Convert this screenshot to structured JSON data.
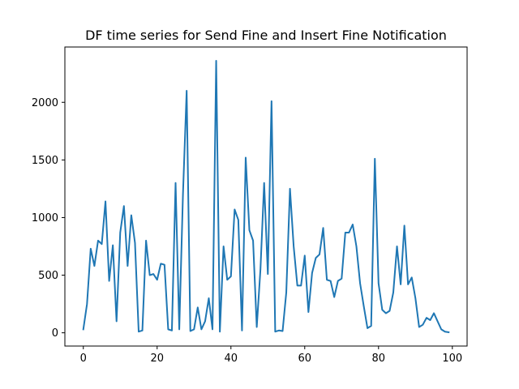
{
  "chart_data": {
    "type": "line",
    "title": "DF time series for Send Fine and Insert Fine Notification",
    "xlabel": "",
    "ylabel": "",
    "xlim": [
      -5,
      104
    ],
    "ylim": [
      -115,
      2480
    ],
    "xticks": [
      0,
      20,
      40,
      60,
      80,
      100
    ],
    "yticks": [
      0,
      500,
      1000,
      1500,
      2000
    ],
    "grid": false,
    "line_color": "#1f77b4",
    "series": [
      {
        "x": [
          0,
          1,
          2,
          3,
          4,
          5,
          6,
          7,
          8,
          9,
          10,
          11,
          12,
          13,
          14,
          15,
          16,
          17,
          18,
          19,
          20,
          21,
          22,
          23,
          24,
          25,
          26,
          27,
          28,
          29,
          30,
          31,
          32,
          33,
          34,
          35,
          36,
          37,
          38,
          39,
          40,
          41,
          42,
          43,
          44,
          45,
          46,
          47,
          48,
          49,
          50,
          51,
          52,
          53,
          54,
          55,
          56,
          57,
          58,
          59,
          60,
          61,
          62,
          63,
          64,
          65,
          66,
          67,
          68,
          69,
          70,
          71,
          72,
          73,
          74,
          75,
          76,
          77,
          78,
          79,
          80,
          81,
          82,
          83,
          84,
          85,
          86,
          87,
          88,
          89,
          90,
          91,
          92,
          93,
          94,
          95,
          96,
          97,
          98,
          99
        ],
        "values": [
          30,
          250,
          730,
          580,
          800,
          770,
          1140,
          450,
          760,
          100,
          870,
          1100,
          580,
          1020,
          780,
          10,
          20,
          800,
          500,
          510,
          460,
          600,
          590,
          30,
          20,
          1300,
          30,
          1200,
          2100,
          15,
          30,
          220,
          30,
          100,
          300,
          30,
          2360,
          10,
          750,
          460,
          490,
          1070,
          980,
          20,
          1520,
          890,
          800,
          50,
          550,
          1300,
          510,
          2010,
          10,
          20,
          15,
          350,
          1250,
          750,
          410,
          410,
          670,
          180,
          520,
          650,
          680,
          910,
          460,
          450,
          310,
          450,
          470,
          870,
          870,
          940,
          750,
          430,
          230,
          40,
          60,
          1510,
          430,
          200,
          170,
          190,
          350,
          750,
          420,
          930,
          420,
          480,
          300,
          50,
          70,
          130,
          110,
          170,
          100,
          30,
          10,
          5
        ]
      }
    ]
  }
}
